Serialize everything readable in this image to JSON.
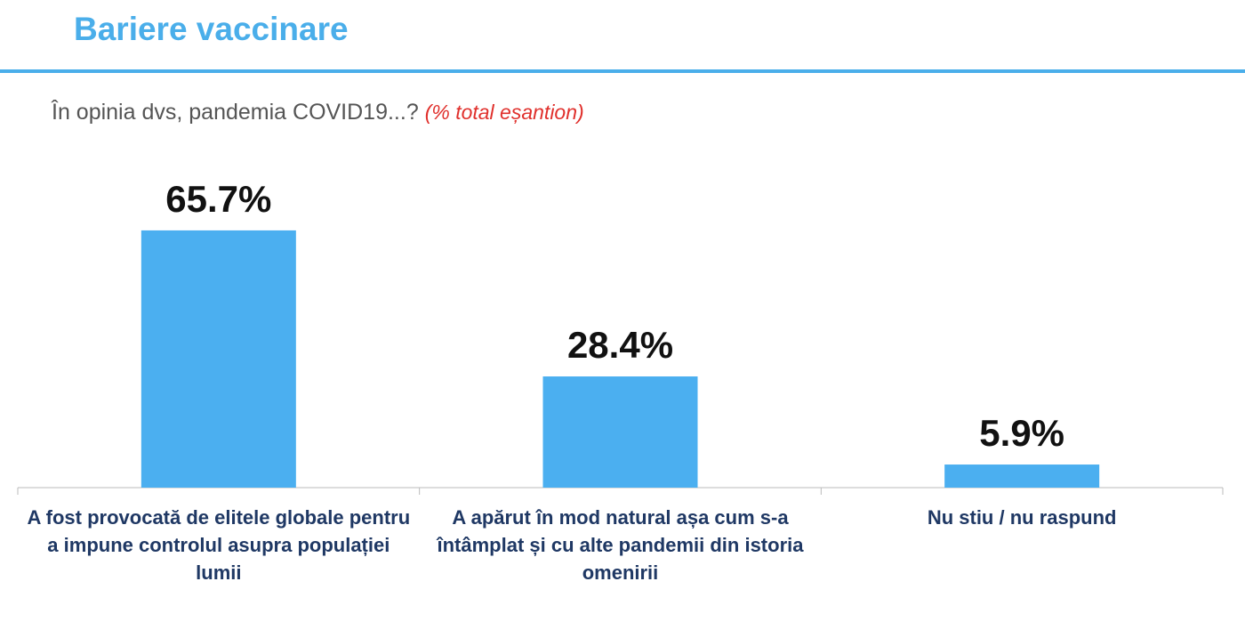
{
  "chart_data": {
    "type": "bar",
    "title": "Bariere vaccinare",
    "subtitle": "În opinia dvs, pandemia COVID19...?",
    "subtitle_note": "(% total eșantion)",
    "categories": [
      "A fost provocată de elitele globale pentru a impune controlul asupra populației lumii",
      "A apărut în mod natural așa cum s-a întâmplat și cu alte pandemii din istoria omenirii",
      "Nu stiu / nu raspund"
    ],
    "values": [
      65.7,
      28.4,
      5.9
    ],
    "value_labels": [
      "65.7%",
      "28.4%",
      "5.9%"
    ],
    "color": "#4baff0"
  }
}
